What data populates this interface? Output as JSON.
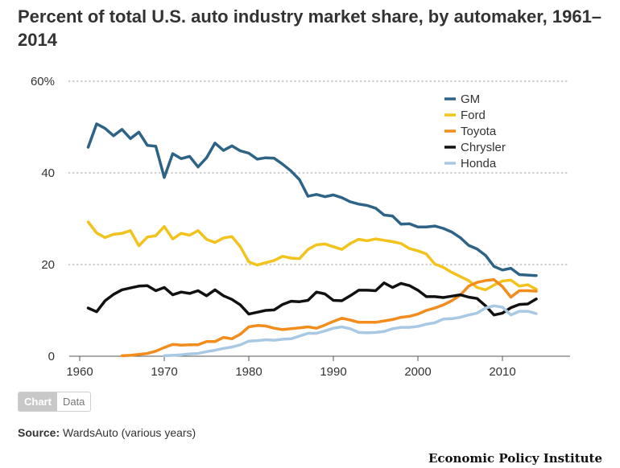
{
  "title": "Percent of total U.S. auto industry market share, by automaker, 1961–2014",
  "tabs": {
    "chart": "Chart",
    "data": "Data"
  },
  "source": {
    "label": "Source:",
    "text": "WardsAuto (various years)"
  },
  "brand": "Economic Policy Institute",
  "chart_data": {
    "type": "line",
    "xlim": [
      1958,
      2018
    ],
    "ylim": [
      0,
      60
    ],
    "xticks": [
      1960,
      1970,
      1980,
      1990,
      2000,
      2010
    ],
    "xtick_labels": [
      "1960",
      "1970",
      "1980",
      "1990",
      "2000",
      "2010"
    ],
    "yticks": [
      0,
      20,
      40,
      60
    ],
    "ytick_labels": [
      "0",
      "20",
      "40",
      "60%"
    ],
    "grid": "horizontal-dotted",
    "legend_position": "top-right",
    "series": [
      {
        "name": "GM",
        "color": "#2e6386",
        "points": [
          [
            1961,
            45.6
          ],
          [
            1962,
            50.7
          ],
          [
            1963,
            49.7
          ],
          [
            1964,
            48.1
          ],
          [
            1965,
            49.5
          ],
          [
            1966,
            47.5
          ],
          [
            1967,
            48.9
          ],
          [
            1968,
            46.0
          ],
          [
            1969,
            45.8
          ],
          [
            1970,
            39.0
          ],
          [
            1971,
            44.2
          ],
          [
            1972,
            43.1
          ],
          [
            1973,
            43.6
          ],
          [
            1974,
            41.3
          ],
          [
            1975,
            43.3
          ],
          [
            1976,
            46.5
          ],
          [
            1977,
            44.9
          ],
          [
            1978,
            45.9
          ],
          [
            1979,
            44.8
          ],
          [
            1980,
            44.3
          ],
          [
            1981,
            43.0
          ],
          [
            1982,
            43.3
          ],
          [
            1983,
            43.2
          ],
          [
            1984,
            41.9
          ],
          [
            1985,
            40.4
          ],
          [
            1986,
            38.5
          ],
          [
            1987,
            34.9
          ],
          [
            1988,
            35.3
          ],
          [
            1989,
            34.8
          ],
          [
            1990,
            35.2
          ],
          [
            1991,
            34.6
          ],
          [
            1992,
            33.7
          ],
          [
            1993,
            33.2
          ],
          [
            1994,
            32.9
          ],
          [
            1995,
            32.3
          ],
          [
            1996,
            30.8
          ],
          [
            1997,
            30.6
          ],
          [
            1998,
            28.8
          ],
          [
            1999,
            28.9
          ],
          [
            2000,
            28.2
          ],
          [
            2001,
            28.2
          ],
          [
            2002,
            28.4
          ],
          [
            2003,
            27.9
          ],
          [
            2004,
            27.1
          ],
          [
            2005,
            25.9
          ],
          [
            2006,
            24.2
          ],
          [
            2007,
            23.4
          ],
          [
            2008,
            22.0
          ],
          [
            2009,
            19.6
          ],
          [
            2010,
            18.8
          ],
          [
            2011,
            19.2
          ],
          [
            2012,
            17.8
          ],
          [
            2013,
            17.7
          ],
          [
            2014,
            17.6
          ]
        ]
      },
      {
        "name": "Ford",
        "color": "#f2c31c",
        "points": [
          [
            1961,
            29.3
          ],
          [
            1962,
            26.9
          ],
          [
            1963,
            25.9
          ],
          [
            1964,
            26.6
          ],
          [
            1965,
            26.8
          ],
          [
            1966,
            27.4
          ],
          [
            1967,
            24.1
          ],
          [
            1968,
            26.0
          ],
          [
            1969,
            26.3
          ],
          [
            1970,
            28.3
          ],
          [
            1971,
            25.6
          ],
          [
            1972,
            26.8
          ],
          [
            1973,
            26.4
          ],
          [
            1974,
            27.4
          ],
          [
            1975,
            25.5
          ],
          [
            1976,
            24.8
          ],
          [
            1977,
            25.8
          ],
          [
            1978,
            26.1
          ],
          [
            1979,
            23.9
          ],
          [
            1980,
            20.6
          ],
          [
            1981,
            19.9
          ],
          [
            1982,
            20.4
          ],
          [
            1983,
            20.9
          ],
          [
            1984,
            21.8
          ],
          [
            1985,
            21.4
          ],
          [
            1986,
            21.3
          ],
          [
            1987,
            23.3
          ],
          [
            1988,
            24.3
          ],
          [
            1989,
            24.5
          ],
          [
            1990,
            23.9
          ],
          [
            1991,
            23.3
          ],
          [
            1992,
            24.6
          ],
          [
            1993,
            25.5
          ],
          [
            1994,
            25.2
          ],
          [
            1995,
            25.6
          ],
          [
            1996,
            25.3
          ],
          [
            1997,
            25.0
          ],
          [
            1998,
            24.6
          ],
          [
            1999,
            23.5
          ],
          [
            2000,
            23.0
          ],
          [
            2001,
            22.3
          ],
          [
            2002,
            20.1
          ],
          [
            2003,
            19.4
          ],
          [
            2004,
            18.3
          ],
          [
            2005,
            17.4
          ],
          [
            2006,
            16.5
          ],
          [
            2007,
            15.0
          ],
          [
            2008,
            14.5
          ],
          [
            2009,
            15.5
          ],
          [
            2010,
            16.4
          ],
          [
            2011,
            16.6
          ],
          [
            2012,
            15.3
          ],
          [
            2013,
            15.6
          ],
          [
            2014,
            14.6
          ]
        ]
      },
      {
        "name": "Toyota",
        "color": "#f28c1d",
        "points": [
          [
            1965,
            0.1
          ],
          [
            1966,
            0.2
          ],
          [
            1967,
            0.4
          ],
          [
            1968,
            0.6
          ],
          [
            1969,
            1.1
          ],
          [
            1970,
            1.9
          ],
          [
            1971,
            2.6
          ],
          [
            1972,
            2.4
          ],
          [
            1973,
            2.5
          ],
          [
            1974,
            2.5
          ],
          [
            1975,
            3.2
          ],
          [
            1976,
            3.2
          ],
          [
            1977,
            4.1
          ],
          [
            1978,
            3.8
          ],
          [
            1979,
            4.8
          ],
          [
            1980,
            6.4
          ],
          [
            1981,
            6.7
          ],
          [
            1982,
            6.6
          ],
          [
            1983,
            6.1
          ],
          [
            1984,
            5.8
          ],
          [
            1985,
            6.0
          ],
          [
            1986,
            6.2
          ],
          [
            1987,
            6.4
          ],
          [
            1988,
            6.1
          ],
          [
            1989,
            6.8
          ],
          [
            1990,
            7.6
          ],
          [
            1991,
            8.3
          ],
          [
            1992,
            7.9
          ],
          [
            1993,
            7.4
          ],
          [
            1994,
            7.4
          ],
          [
            1995,
            7.4
          ],
          [
            1996,
            7.7
          ],
          [
            1997,
            8.0
          ],
          [
            1998,
            8.5
          ],
          [
            1999,
            8.7
          ],
          [
            2000,
            9.2
          ],
          [
            2001,
            10.0
          ],
          [
            2002,
            10.5
          ],
          [
            2003,
            11.2
          ],
          [
            2004,
            12.1
          ],
          [
            2005,
            13.3
          ],
          [
            2006,
            15.3
          ],
          [
            2007,
            16.1
          ],
          [
            2008,
            16.5
          ],
          [
            2009,
            16.7
          ],
          [
            2010,
            15.2
          ],
          [
            2011,
            12.9
          ],
          [
            2012,
            14.3
          ],
          [
            2013,
            14.3
          ],
          [
            2014,
            14.2
          ]
        ]
      },
      {
        "name": "Chrysler",
        "color": "#111111",
        "points": [
          [
            1961,
            10.5
          ],
          [
            1962,
            9.7
          ],
          [
            1963,
            12.1
          ],
          [
            1964,
            13.5
          ],
          [
            1965,
            14.5
          ],
          [
            1966,
            14.9
          ],
          [
            1967,
            15.3
          ],
          [
            1968,
            15.4
          ],
          [
            1969,
            14.3
          ],
          [
            1970,
            15.0
          ],
          [
            1971,
            13.4
          ],
          [
            1972,
            14.0
          ],
          [
            1973,
            13.7
          ],
          [
            1974,
            14.3
          ],
          [
            1975,
            13.2
          ],
          [
            1976,
            14.5
          ],
          [
            1977,
            13.2
          ],
          [
            1978,
            12.4
          ],
          [
            1979,
            11.2
          ],
          [
            1980,
            9.2
          ],
          [
            1981,
            9.6
          ],
          [
            1982,
            10.0
          ],
          [
            1983,
            10.1
          ],
          [
            1984,
            11.3
          ],
          [
            1985,
            12.0
          ],
          [
            1986,
            11.9
          ],
          [
            1987,
            12.2
          ],
          [
            1988,
            14.0
          ],
          [
            1989,
            13.6
          ],
          [
            1990,
            12.2
          ],
          [
            1991,
            12.1
          ],
          [
            1992,
            13.2
          ],
          [
            1993,
            14.4
          ],
          [
            1994,
            14.4
          ],
          [
            1995,
            14.3
          ],
          [
            1996,
            16.0
          ],
          [
            1997,
            15.0
          ],
          [
            1998,
            15.9
          ],
          [
            1999,
            15.4
          ],
          [
            2000,
            14.4
          ],
          [
            2001,
            13.0
          ],
          [
            2002,
            13.0
          ],
          [
            2003,
            12.8
          ],
          [
            2004,
            13.1
          ],
          [
            2005,
            13.4
          ],
          [
            2006,
            12.9
          ],
          [
            2007,
            12.6
          ],
          [
            2008,
            11.0
          ],
          [
            2009,
            9.0
          ],
          [
            2010,
            9.4
          ],
          [
            2011,
            10.6
          ],
          [
            2012,
            11.3
          ],
          [
            2013,
            11.4
          ],
          [
            2014,
            12.5
          ]
        ]
      },
      {
        "name": "Honda",
        "color": "#a8c8e4",
        "points": [
          [
            1970,
            0.1
          ],
          [
            1971,
            0.2
          ],
          [
            1972,
            0.3
          ],
          [
            1973,
            0.5
          ],
          [
            1974,
            0.6
          ],
          [
            1975,
            1.0
          ],
          [
            1976,
            1.3
          ],
          [
            1977,
            1.7
          ],
          [
            1978,
            2.0
          ],
          [
            1979,
            2.5
          ],
          [
            1980,
            3.3
          ],
          [
            1981,
            3.4
          ],
          [
            1982,
            3.6
          ],
          [
            1983,
            3.5
          ],
          [
            1984,
            3.7
          ],
          [
            1985,
            3.8
          ],
          [
            1986,
            4.4
          ],
          [
            1987,
            5.0
          ],
          [
            1988,
            5.0
          ],
          [
            1989,
            5.5
          ],
          [
            1990,
            6.1
          ],
          [
            1991,
            6.4
          ],
          [
            1992,
            6.0
          ],
          [
            1993,
            5.2
          ],
          [
            1994,
            5.1
          ],
          [
            1995,
            5.2
          ],
          [
            1996,
            5.4
          ],
          [
            1997,
            6.0
          ],
          [
            1998,
            6.3
          ],
          [
            1999,
            6.3
          ],
          [
            2000,
            6.5
          ],
          [
            2001,
            7.0
          ],
          [
            2002,
            7.3
          ],
          [
            2003,
            8.1
          ],
          [
            2004,
            8.2
          ],
          [
            2005,
            8.5
          ],
          [
            2006,
            9.0
          ],
          [
            2007,
            9.4
          ],
          [
            2008,
            10.5
          ],
          [
            2009,
            11.0
          ],
          [
            2010,
            10.7
          ],
          [
            2011,
            9.0
          ],
          [
            2012,
            9.8
          ],
          [
            2013,
            9.8
          ],
          [
            2014,
            9.3
          ]
        ]
      }
    ]
  }
}
